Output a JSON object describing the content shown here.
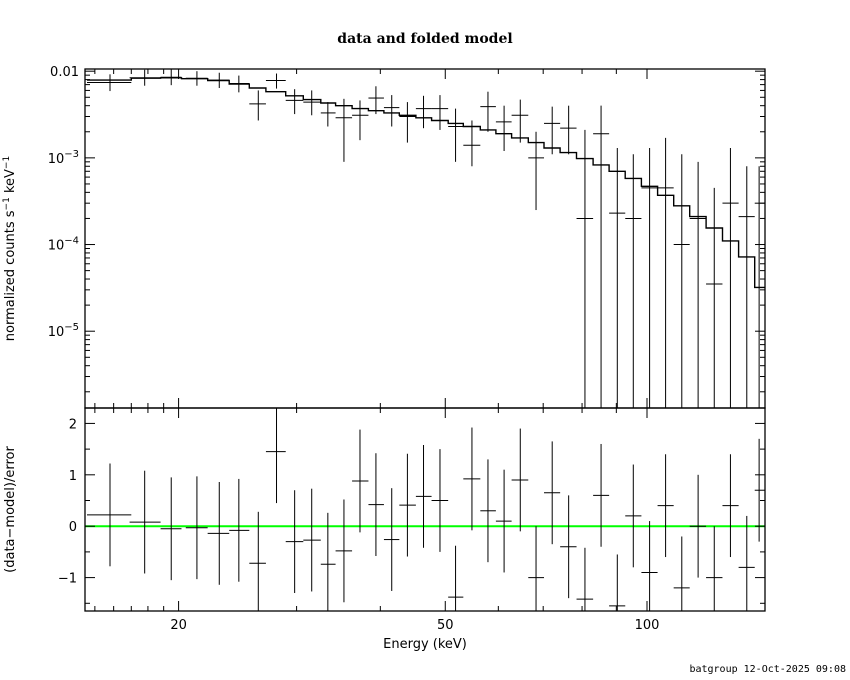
{
  "title": "data and folded model",
  "footer": "batgroup 12-Oct-2025 09:08",
  "colors": {
    "ink": "#000000",
    "model_line": "#000000",
    "zero_line": "#00ff00",
    "background": "#ffffff"
  },
  "chart_data": [
    {
      "type": "scatter",
      "panel": "top",
      "ylabel_base": "normalized counts s",
      "ylabel_exp1": "−1",
      "ylabel_mid": " keV",
      "ylabel_exp2": "−1",
      "x_scale": "log",
      "y_scale": "log",
      "xlim": [
        14.5,
        150
      ],
      "ylim": [
        1.3e-06,
        0.0106
      ],
      "y_ticks": [
        {
          "value": 0.01,
          "base": "0.01",
          "exp": ""
        },
        {
          "value": 0.001,
          "base": "10",
          "exp": "−3"
        },
        {
          "value": 0.0001,
          "base": "10",
          "exp": "−4"
        },
        {
          "value": 1e-05,
          "base": "10",
          "exp": "−5"
        }
      ],
      "series": [
        {
          "role": "data",
          "points": [
            [
              15.8,
              0.0074,
              14.6,
              17.0,
              0.0059,
              0.0092
            ],
            [
              17.8,
              0.0084,
              16.9,
              18.8,
              0.0068,
              0.0104
            ],
            [
              19.5,
              0.0085,
              18.8,
              20.2,
              0.0069,
              0.0105
            ],
            [
              21.3,
              0.0083,
              20.5,
              22.1,
              0.0068,
              0.01
            ],
            [
              23.0,
              0.0079,
              22.1,
              23.8,
              0.0064,
              0.0096
            ],
            [
              24.6,
              0.0072,
              23.8,
              25.5,
              0.0057,
              0.0089
            ],
            [
              26.3,
              0.0042,
              25.5,
              27.0,
              0.0027,
              0.006
            ],
            [
              28.0,
              0.0078,
              27.0,
              28.9,
              0.0063,
              0.0094
            ],
            [
              29.8,
              0.0046,
              28.9,
              30.7,
              0.0032,
              0.0062
            ],
            [
              31.6,
              0.0044,
              30.7,
              32.6,
              0.0031,
              0.006
            ],
            [
              33.4,
              0.0033,
              32.6,
              34.3,
              0.0023,
              0.0044
            ],
            [
              35.3,
              0.0029,
              34.3,
              36.3,
              0.0009,
              0.0048
            ],
            [
              37.3,
              0.0031,
              36.3,
              38.4,
              0.0016,
              0.0046
            ],
            [
              39.4,
              0.0049,
              38.4,
              40.5,
              0.0032,
              0.0067
            ],
            [
              41.6,
              0.0038,
              40.5,
              42.7,
              0.0023,
              0.0053
            ],
            [
              43.9,
              0.003,
              42.7,
              45.2,
              0.0015,
              0.0044
            ],
            [
              46.4,
              0.0037,
              45.2,
              47.7,
              0.0022,
              0.0052
            ],
            [
              49.1,
              0.0037,
              47.7,
              50.5,
              0.0021,
              0.0053
            ],
            [
              51.8,
              0.0023,
              50.5,
              53.2,
              0.0009,
              0.0037
            ],
            [
              54.8,
              0.0014,
              53.2,
              56.4,
              0.0008,
              0.0027
            ],
            [
              57.9,
              0.0039,
              56.4,
              59.5,
              0.002,
              0.0058
            ],
            [
              61.2,
              0.0026,
              59.5,
              62.8,
              0.0012,
              0.004
            ],
            [
              64.7,
              0.0031,
              62.8,
              66.5,
              0.0015,
              0.0047
            ],
            [
              68.3,
              0.001,
              66.5,
              70.2,
              0.00025,
              0.002
            ],
            [
              72.2,
              0.0025,
              70.2,
              74.2,
              0.0011,
              0.0039
            ],
            [
              76.4,
              0.0022,
              74.2,
              78.5,
              0.0011,
              0.004
            ],
            [
              80.8,
              0.0002,
              78.5,
              83.1,
              1.3e-06,
              0.0021
            ],
            [
              85.4,
              0.0019,
              83.1,
              87.8,
              1.3e-06,
              0.004
            ],
            [
              90.3,
              0.00023,
              87.8,
              92.8,
              1.3e-06,
              0.0013
            ],
            [
              95.4,
              0.0002,
              92.8,
              98.1,
              1.3e-06,
              0.0011
            ],
            [
              100.9,
              0.00045,
              98.1,
              103.7,
              1.3e-06,
              0.0013
            ],
            [
              106.6,
              0.00045,
              103.7,
              109.6,
              1.3e-06,
              0.0017
            ],
            [
              112.7,
              0.0001,
              109.6,
              115.8,
              1.3e-06,
              0.0011
            ],
            [
              119.2,
              0.0002,
              115.8,
              122.5,
              1.3e-06,
              0.0009
            ],
            [
              126.0,
              3.5e-05,
              122.5,
              129.6,
              1.3e-06,
              0.00045
            ],
            [
              133.2,
              0.0003,
              129.6,
              137.0,
              1.3e-06,
              0.0013
            ],
            [
              140.9,
              0.00021,
              137.0,
              144.8,
              1.3e-06,
              0.0008
            ],
            [
              147.0,
              0.0003,
              144.8,
              150.0,
              1.3e-06,
              0.0008
            ]
          ]
        },
        {
          "role": "model",
          "steps": [
            [
              14.6,
              17.0,
              0.0079
            ],
            [
              17.0,
              18.8,
              0.0083
            ],
            [
              18.8,
              20.2,
              0.0084
            ],
            [
              20.2,
              22.1,
              0.0082
            ],
            [
              22.1,
              23.8,
              0.0078
            ],
            [
              23.8,
              25.5,
              0.0071
            ],
            [
              25.5,
              27.0,
              0.0064
            ],
            [
              27.0,
              28.9,
              0.0058
            ],
            [
              28.9,
              30.7,
              0.0052
            ],
            [
              30.7,
              32.6,
              0.0047
            ],
            [
              32.6,
              34.3,
              0.0043
            ],
            [
              34.3,
              36.3,
              0.004
            ],
            [
              36.3,
              38.4,
              0.0037
            ],
            [
              38.4,
              40.5,
              0.0035
            ],
            [
              40.5,
              42.7,
              0.0033
            ],
            [
              42.7,
              45.2,
              0.0031
            ],
            [
              45.2,
              47.7,
              0.0029
            ],
            [
              47.7,
              50.5,
              0.0027
            ],
            [
              50.5,
              53.2,
              0.0025
            ],
            [
              53.2,
              56.4,
              0.0023
            ],
            [
              56.4,
              59.5,
              0.0021
            ],
            [
              59.5,
              62.8,
              0.0019
            ],
            [
              62.8,
              66.5,
              0.0017
            ],
            [
              66.5,
              70.2,
              0.0015
            ],
            [
              70.2,
              74.2,
              0.0013
            ],
            [
              74.2,
              78.5,
              0.00115
            ],
            [
              78.5,
              83.1,
              0.00098
            ],
            [
              83.1,
              87.8,
              0.00083
            ],
            [
              87.8,
              92.8,
              0.0007
            ],
            [
              92.8,
              98.1,
              0.00058
            ],
            [
              98.1,
              103.7,
              0.00047
            ],
            [
              103.7,
              109.6,
              0.00037
            ],
            [
              109.6,
              115.8,
              0.00028
            ],
            [
              115.8,
              122.5,
              0.00021
            ],
            [
              122.5,
              129.6,
              0.000155
            ],
            [
              129.6,
              137.0,
              0.00011
            ],
            [
              137.0,
              144.8,
              7.2e-05
            ],
            [
              144.8,
              150.0,
              3.2e-05
            ]
          ]
        }
      ]
    },
    {
      "type": "scatter",
      "panel": "bottom",
      "xlabel": "Energy (keV)",
      "ylabel": "(data−model)/error",
      "x_scale": "log",
      "xlim": [
        14.5,
        150
      ],
      "ylim": [
        -1.65,
        2.3
      ],
      "x_ticks": [
        {
          "value": 20,
          "label": "20"
        },
        {
          "value": 50,
          "label": "50"
        },
        {
          "value": 100,
          "label": "100"
        }
      ],
      "y_ticks": [
        {
          "value": -1,
          "label": "−1"
        },
        {
          "value": 0,
          "label": "0"
        },
        {
          "value": 1,
          "label": "1"
        },
        {
          "value": 2,
          "label": "2"
        }
      ],
      "zero_line": 0,
      "series": [
        {
          "role": "residuals",
          "points": [
            [
              15.8,
              0.22,
              14.6,
              17.0,
              -0.78,
              1.22
            ],
            [
              17.8,
              0.08,
              16.9,
              18.8,
              -0.92,
              1.08
            ],
            [
              19.5,
              -0.05,
              18.8,
              20.2,
              -1.05,
              0.95
            ],
            [
              21.3,
              -0.03,
              20.5,
              22.1,
              -1.03,
              0.97
            ],
            [
              23.0,
              -0.14,
              22.1,
              23.8,
              -1.14,
              0.86
            ],
            [
              24.6,
              -0.08,
              23.8,
              25.5,
              -1.08,
              0.92
            ],
            [
              26.3,
              -0.72,
              25.5,
              27.0,
              -1.72,
              0.28
            ],
            [
              28.0,
              1.45,
              27.0,
              28.9,
              0.45,
              2.45
            ],
            [
              29.8,
              -0.3,
              28.9,
              30.7,
              -1.3,
              0.7
            ],
            [
              31.6,
              -0.27,
              30.7,
              32.6,
              -1.27,
              0.73
            ],
            [
              33.4,
              -0.74,
              32.6,
              34.3,
              -1.74,
              0.26
            ],
            [
              35.3,
              -0.48,
              34.3,
              36.3,
              -1.48,
              0.52
            ],
            [
              37.3,
              0.88,
              36.3,
              38.4,
              -0.12,
              1.88
            ],
            [
              39.4,
              0.42,
              38.4,
              40.5,
              -0.58,
              1.42
            ],
            [
              41.6,
              -0.26,
              40.5,
              42.7,
              -1.26,
              0.74
            ],
            [
              43.9,
              0.41,
              42.7,
              45.2,
              -0.59,
              1.41
            ],
            [
              46.4,
              0.58,
              45.2,
              47.7,
              -0.42,
              1.58
            ],
            [
              49.1,
              0.5,
              47.7,
              50.5,
              -0.5,
              1.5
            ],
            [
              51.8,
              -1.38,
              50.5,
              53.2,
              -2.38,
              -0.38
            ],
            [
              54.8,
              0.92,
              53.2,
              56.4,
              -0.08,
              1.92
            ],
            [
              57.9,
              0.3,
              56.4,
              59.5,
              -0.7,
              1.3
            ],
            [
              61.2,
              0.1,
              59.5,
              62.8,
              -0.9,
              1.1
            ],
            [
              64.7,
              0.9,
              62.8,
              66.5,
              -0.1,
              1.9
            ],
            [
              68.3,
              -1.0,
              66.5,
              70.2,
              -2.0,
              0.0
            ],
            [
              72.2,
              0.65,
              70.2,
              74.2,
              -0.35,
              1.65
            ],
            [
              76.4,
              -0.4,
              74.2,
              78.5,
              -1.4,
              0.6
            ],
            [
              80.8,
              -1.42,
              78.5,
              83.1,
              -2.42,
              -0.42
            ],
            [
              85.4,
              0.6,
              83.1,
              87.8,
              -0.4,
              1.6
            ],
            [
              90.3,
              -1.55,
              87.8,
              92.8,
              -2.55,
              -0.55
            ],
            [
              95.4,
              0.2,
              92.8,
              98.1,
              -0.8,
              1.2
            ],
            [
              100.9,
              -0.9,
              98.1,
              103.7,
              -1.9,
              0.1
            ],
            [
              106.6,
              0.4,
              103.7,
              109.6,
              -0.6,
              1.4
            ],
            [
              112.7,
              -1.2,
              109.6,
              115.8,
              -2.2,
              -0.2
            ],
            [
              119.2,
              0.0,
              115.8,
              122.5,
              -1.0,
              1.0
            ],
            [
              126.0,
              -1.0,
              122.5,
              129.6,
              -2.0,
              0.0
            ],
            [
              133.2,
              0.4,
              129.6,
              137.0,
              -0.6,
              1.4
            ],
            [
              140.9,
              -0.8,
              137.0,
              144.8,
              -1.8,
              0.2
            ],
            [
              147.0,
              0.7,
              144.8,
              150.0,
              -0.3,
              1.7
            ]
          ]
        }
      ]
    }
  ]
}
